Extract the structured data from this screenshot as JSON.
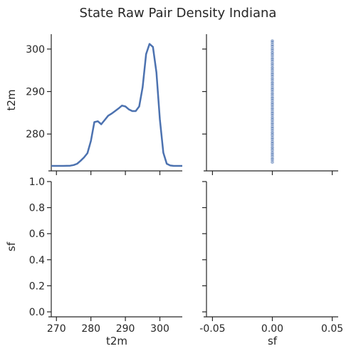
{
  "chart_data": {
    "type": "scatter",
    "title": "State Raw Pair Density Indiana",
    "variables": [
      "t2m",
      "sf"
    ],
    "colors": {
      "primary": "#4c72b0",
      "text": "#262626",
      "background": "#ffffff"
    },
    "grid": false,
    "legend": "none",
    "panels": [
      {
        "id": "t2m_t2m",
        "type": "line",
        "description": "kde",
        "xlabel": "",
        "ylabel": "t2m",
        "xlim": [
          268.5,
          306.5
        ],
        "ylim": [
          272.5,
          303.5
        ],
        "xticks": [
          270,
          280,
          290,
          300
        ],
        "yticks": [
          280,
          290,
          300
        ],
        "x": [
          268,
          270,
          272,
          274,
          275,
          276,
          277,
          278,
          279,
          280,
          281,
          282,
          283,
          284,
          285,
          286,
          287,
          288,
          289,
          290,
          291,
          292,
          293,
          294,
          295,
          296,
          297,
          298,
          299,
          300,
          301,
          302,
          303,
          304,
          305,
          306,
          307
        ],
        "y": [
          272.5,
          272.5,
          272.5,
          272.55,
          272.7,
          273.0,
          273.7,
          274.5,
          275.5,
          278.4,
          282.8,
          283.0,
          282.3,
          283.3,
          284.3,
          284.8,
          285.4,
          286.0,
          286.7,
          286.5,
          285.8,
          285.4,
          285.4,
          286.5,
          291.0,
          298.8,
          301.2,
          300.5,
          294.5,
          283.5,
          275.6,
          273.0,
          272.6,
          272.5,
          272.5,
          272.5,
          272.5
        ]
      },
      {
        "id": "t2m_sf",
        "type": "scatter",
        "xlabel": "",
        "ylabel": "",
        "xlim": [
          -0.055,
          0.055
        ],
        "ylim": [
          272.5,
          303.5
        ],
        "xticks": [
          -0.05,
          0.0,
          0.05
        ],
        "yticks": [
          280,
          290,
          300
        ],
        "x_value": 0.0,
        "y_values": [
          273.4,
          273.9,
          274.3,
          274.8,
          275.2,
          275.6,
          276.1,
          276.5,
          276.9,
          277.4,
          277.8,
          278.2,
          278.7,
          279.1,
          279.6,
          280.0,
          280.4,
          280.9,
          281.3,
          281.7,
          282.2,
          282.6,
          283.1,
          283.5,
          283.9,
          284.4,
          284.8,
          285.2,
          285.7,
          286.1,
          286.6,
          287.0,
          287.4,
          287.9,
          288.3,
          288.7,
          289.2,
          289.6,
          290.1,
          290.5,
          290.9,
          291.4,
          291.8,
          292.2,
          292.7,
          293.1,
          293.6,
          294.0,
          294.4,
          294.9,
          295.3,
          295.7,
          296.2,
          296.6,
          297.1,
          297.5,
          297.9,
          298.4,
          298.8,
          299.2,
          299.7,
          300.1,
          300.6,
          301.0,
          301.5,
          301.9
        ]
      },
      {
        "id": "sf_t2m",
        "type": "empty",
        "xlabel": "t2m",
        "ylabel": "sf",
        "xlim": [
          268.5,
          306.5
        ],
        "ylim": [
          0.0,
          1.0
        ],
        "xticks": [
          270,
          280,
          290,
          300
        ],
        "yticks": [
          0.0,
          0.2,
          0.4,
          0.6,
          0.8,
          1.0
        ]
      },
      {
        "id": "sf_sf",
        "type": "empty",
        "xlabel": "sf",
        "ylabel": "",
        "xlim": [
          -0.055,
          0.055
        ],
        "ylim": [
          0.0,
          1.0
        ],
        "xticks": [
          -0.05,
          0.0,
          0.05
        ],
        "yticks": [
          0.0,
          0.2,
          0.4,
          0.6,
          0.8,
          1.0
        ]
      }
    ]
  }
}
